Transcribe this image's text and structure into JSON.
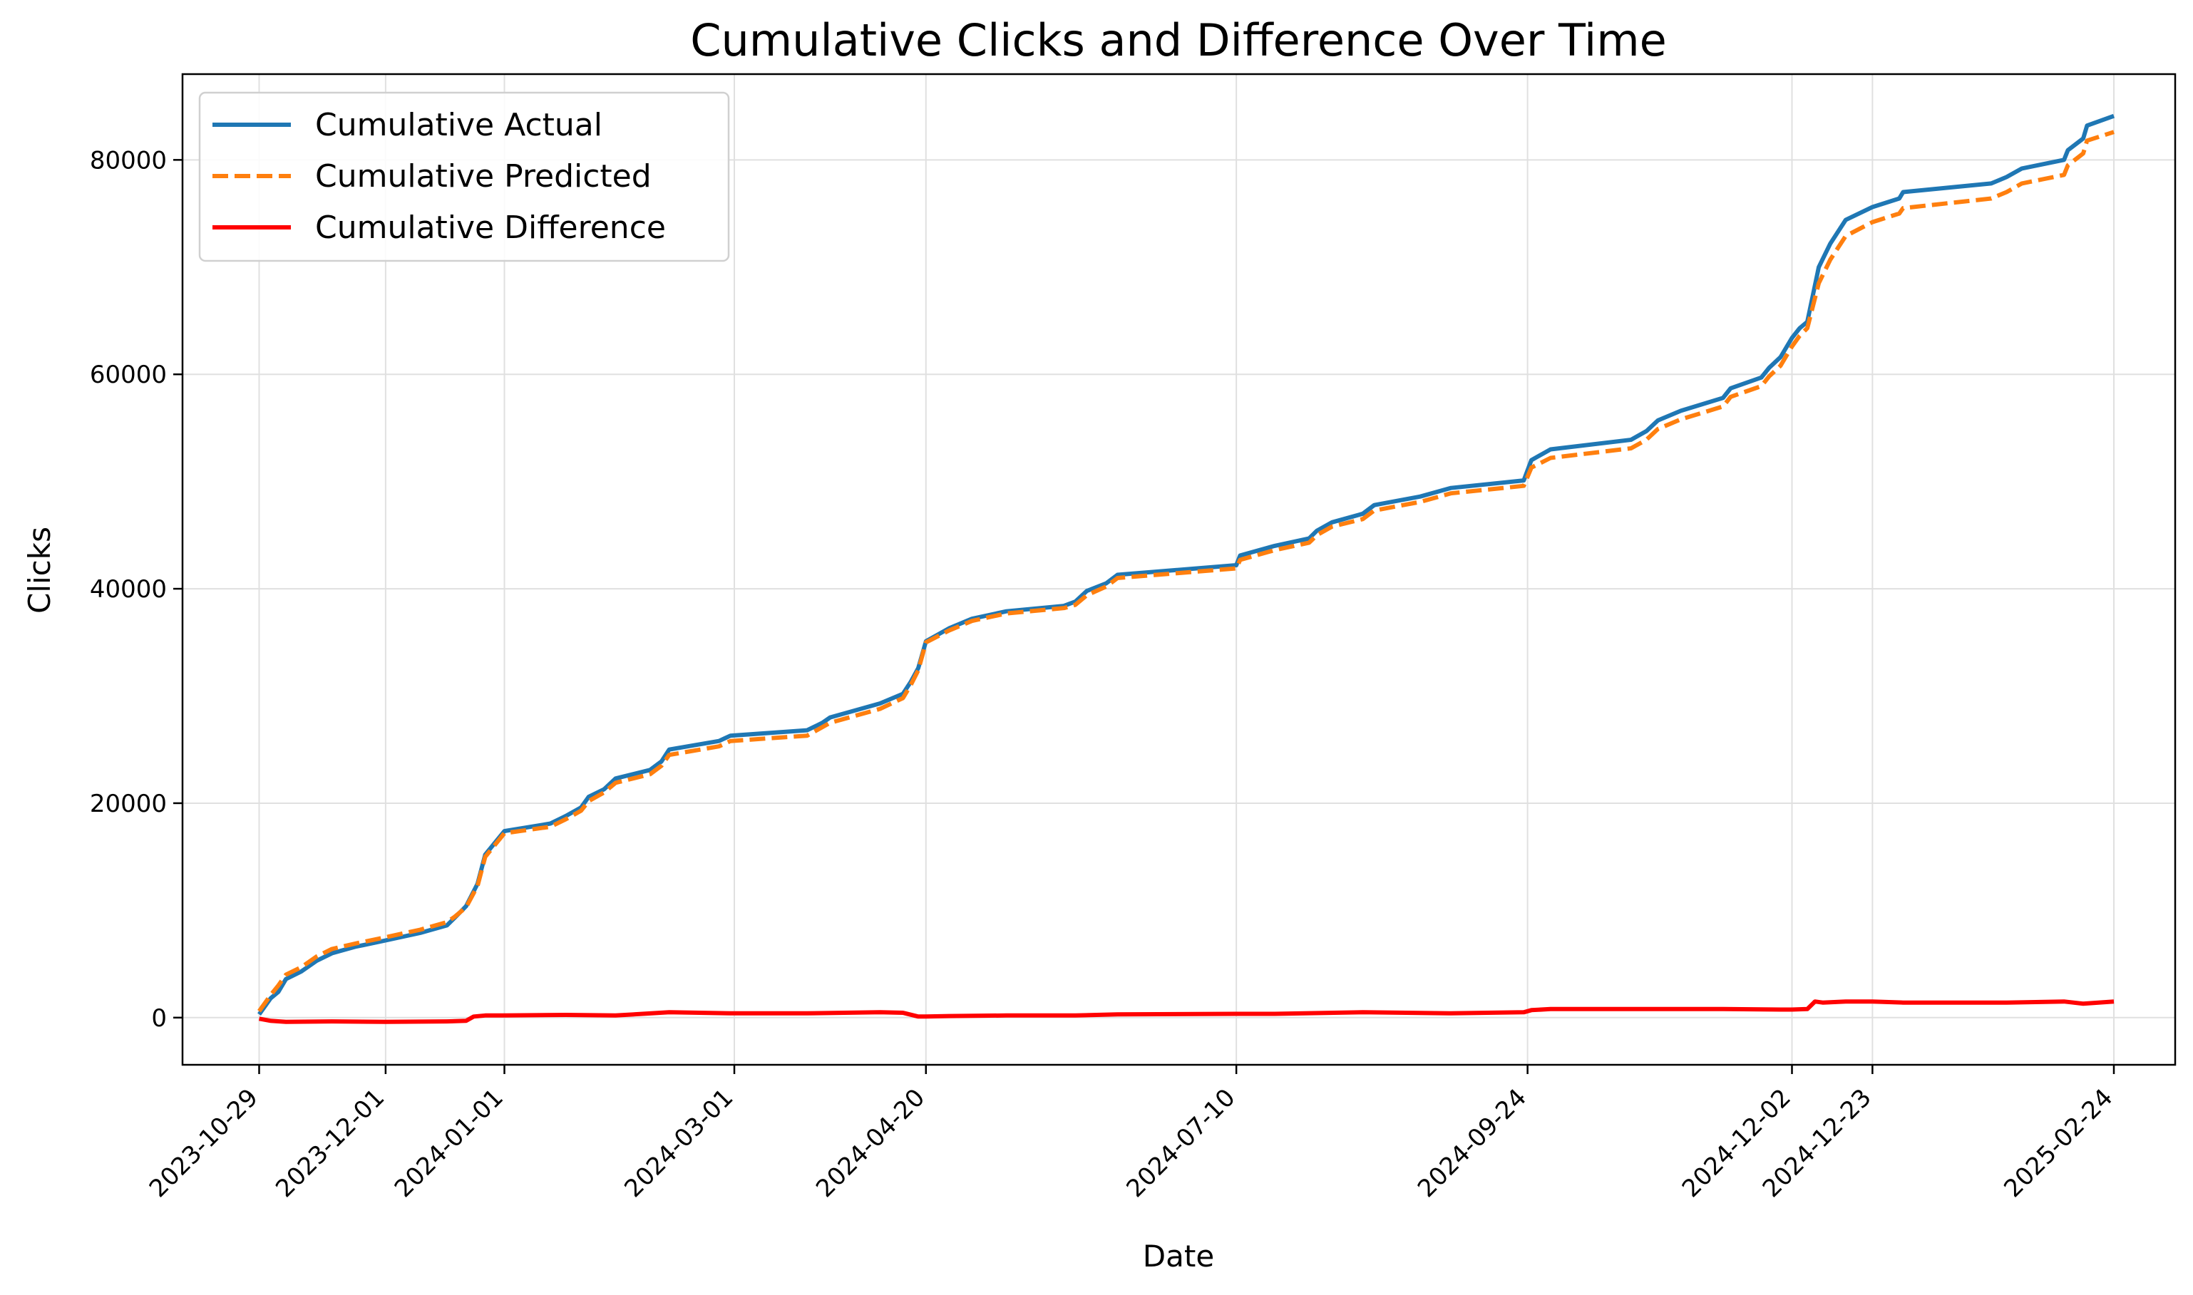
{
  "chart_data": {
    "type": "line",
    "title": "Cumulative Clicks and Difference Over Time",
    "xlabel": "Date",
    "ylabel": "Clicks",
    "xlim": [
      "2023-10-09",
      "2025-03-12"
    ],
    "ylim": [
      -4400,
      88000
    ],
    "grid": true,
    "legend_position": "top-left",
    "x_ticks": [
      "2023-10-29",
      "2023-12-01",
      "2024-01-01",
      "2024-03-01",
      "2024-04-20",
      "2024-07-10",
      "2024-09-24",
      "2024-12-02",
      "2024-12-23",
      "2025-02-24"
    ],
    "y_ticks": [
      0,
      20000,
      40000,
      60000,
      80000
    ],
    "series": [
      {
        "name": "Cumulative Actual",
        "color": "#1f77b4",
        "style": "solid",
        "points": [
          [
            "2023-10-29",
            300
          ],
          [
            "2023-11-01",
            1800
          ],
          [
            "2023-11-03",
            2400
          ],
          [
            "2023-11-05",
            3600
          ],
          [
            "2023-11-09",
            4300
          ],
          [
            "2023-11-13",
            5300
          ],
          [
            "2023-11-17",
            6000
          ],
          [
            "2023-11-23",
            6600
          ],
          [
            "2023-12-01",
            7200
          ],
          [
            "2023-12-10",
            7900
          ],
          [
            "2023-12-17",
            8600
          ],
          [
            "2023-12-19",
            9300
          ],
          [
            "2023-12-22",
            10400
          ],
          [
            "2023-12-25",
            12500
          ],
          [
            "2023-12-27",
            15200
          ],
          [
            "2024-01-01",
            17400
          ],
          [
            "2024-01-13",
            18100
          ],
          [
            "2024-01-17",
            18800
          ],
          [
            "2024-01-21",
            19600
          ],
          [
            "2024-01-23",
            20600
          ],
          [
            "2024-01-27",
            21300
          ],
          [
            "2024-01-30",
            22300
          ],
          [
            "2024-02-08",
            23100
          ],
          [
            "2024-02-11",
            23900
          ],
          [
            "2024-02-13",
            25000
          ],
          [
            "2024-02-26",
            25800
          ],
          [
            "2024-02-29",
            26300
          ],
          [
            "2024-03-20",
            26800
          ],
          [
            "2024-03-24",
            27500
          ],
          [
            "2024-03-26",
            28000
          ],
          [
            "2024-04-08",
            29300
          ],
          [
            "2024-04-14",
            30200
          ],
          [
            "2024-04-16",
            31300
          ],
          [
            "2024-04-18",
            32600
          ],
          [
            "2024-04-20",
            35100
          ],
          [
            "2024-04-26",
            36300
          ],
          [
            "2024-05-02",
            37200
          ],
          [
            "2024-05-11",
            37900
          ],
          [
            "2024-05-26",
            38400
          ],
          [
            "2024-05-29",
            38800
          ],
          [
            "2024-06-01",
            39800
          ],
          [
            "2024-06-06",
            40500
          ],
          [
            "2024-06-09",
            41300
          ],
          [
            "2024-07-10",
            42200
          ],
          [
            "2024-07-11",
            43100
          ],
          [
            "2024-07-20",
            44000
          ],
          [
            "2024-07-29",
            44700
          ],
          [
            "2024-07-31",
            45400
          ],
          [
            "2024-08-04",
            46200
          ],
          [
            "2024-08-12",
            47000
          ],
          [
            "2024-08-15",
            47800
          ],
          [
            "2024-08-27",
            48600
          ],
          [
            "2024-09-04",
            49400
          ],
          [
            "2024-09-23",
            50100
          ],
          [
            "2024-09-25",
            52000
          ],
          [
            "2024-09-30",
            53000
          ],
          [
            "2024-10-21",
            53900
          ],
          [
            "2024-10-25",
            54700
          ],
          [
            "2024-10-28",
            55700
          ],
          [
            "2024-11-03",
            56600
          ],
          [
            "2024-11-14",
            57800
          ],
          [
            "2024-11-16",
            58700
          ],
          [
            "2024-11-24",
            59700
          ],
          [
            "2024-11-26",
            60600
          ],
          [
            "2024-11-29",
            61600
          ],
          [
            "2024-12-02",
            63400
          ],
          [
            "2024-12-04",
            64300
          ],
          [
            "2024-12-06",
            64900
          ],
          [
            "2024-12-09",
            70000
          ],
          [
            "2024-12-12",
            72200
          ],
          [
            "2024-12-16",
            74400
          ],
          [
            "2024-12-23",
            75600
          ],
          [
            "2024-12-30",
            76400
          ],
          [
            "2024-12-31",
            77000
          ],
          [
            "2025-01-23",
            77800
          ],
          [
            "2025-01-27",
            78400
          ],
          [
            "2025-01-31",
            79200
          ],
          [
            "2025-02-11",
            80000
          ],
          [
            "2025-02-12",
            80900
          ],
          [
            "2025-02-16",
            82000
          ],
          [
            "2025-02-17",
            83200
          ],
          [
            "2025-02-24",
            84100
          ]
        ]
      },
      {
        "name": "Cumulative Predicted",
        "color": "#ff7f0e",
        "style": "dashed",
        "points": [
          [
            "2023-10-29",
            600
          ],
          [
            "2023-11-01",
            2100
          ],
          [
            "2023-11-03",
            3000
          ],
          [
            "2023-11-05",
            4000
          ],
          [
            "2023-11-09",
            4700
          ],
          [
            "2023-11-13",
            5700
          ],
          [
            "2023-11-17",
            6400
          ],
          [
            "2023-11-23",
            6900
          ],
          [
            "2023-12-01",
            7500
          ],
          [
            "2023-12-10",
            8200
          ],
          [
            "2023-12-17",
            8900
          ],
          [
            "2023-12-19",
            9400
          ],
          [
            "2023-12-22",
            10300
          ],
          [
            "2023-12-25",
            12300
          ],
          [
            "2023-12-27",
            15000
          ],
          [
            "2024-01-01",
            17200
          ],
          [
            "2024-01-13",
            17800
          ],
          [
            "2024-01-17",
            18500
          ],
          [
            "2024-01-21",
            19300
          ],
          [
            "2024-01-23",
            20200
          ],
          [
            "2024-01-27",
            21000
          ],
          [
            "2024-01-30",
            21900
          ],
          [
            "2024-02-08",
            22700
          ],
          [
            "2024-02-11",
            23500
          ],
          [
            "2024-02-13",
            24500
          ],
          [
            "2024-02-26",
            25300
          ],
          [
            "2024-02-29",
            25800
          ],
          [
            "2024-03-20",
            26300
          ],
          [
            "2024-03-24",
            27100
          ],
          [
            "2024-03-26",
            27500
          ],
          [
            "2024-04-08",
            28800
          ],
          [
            "2024-04-14",
            29800
          ],
          [
            "2024-04-16",
            31000
          ],
          [
            "2024-04-18",
            32400
          ],
          [
            "2024-04-20",
            35000
          ],
          [
            "2024-04-26",
            36100
          ],
          [
            "2024-05-02",
            37000
          ],
          [
            "2024-05-11",
            37700
          ],
          [
            "2024-05-26",
            38200
          ],
          [
            "2024-05-29",
            38500
          ],
          [
            "2024-06-01",
            39400
          ],
          [
            "2024-06-06",
            40200
          ],
          [
            "2024-06-09",
            41000
          ],
          [
            "2024-07-10",
            41900
          ],
          [
            "2024-07-11",
            42700
          ],
          [
            "2024-07-20",
            43600
          ],
          [
            "2024-07-29",
            44300
          ],
          [
            "2024-07-31",
            45000
          ],
          [
            "2024-08-04",
            45800
          ],
          [
            "2024-08-12",
            46500
          ],
          [
            "2024-08-15",
            47300
          ],
          [
            "2024-08-27",
            48100
          ],
          [
            "2024-09-04",
            48900
          ],
          [
            "2024-09-23",
            49600
          ],
          [
            "2024-09-25",
            51300
          ],
          [
            "2024-09-30",
            52200
          ],
          [
            "2024-10-21",
            53100
          ],
          [
            "2024-10-25",
            53900
          ],
          [
            "2024-10-28",
            54900
          ],
          [
            "2024-11-03",
            55800
          ],
          [
            "2024-11-14",
            57000
          ],
          [
            "2024-11-16",
            57900
          ],
          [
            "2024-11-24",
            58900
          ],
          [
            "2024-11-26",
            59800
          ],
          [
            "2024-11-29",
            60800
          ],
          [
            "2024-12-02",
            62600
          ],
          [
            "2024-12-04",
            63600
          ],
          [
            "2024-12-06",
            64300
          ],
          [
            "2024-12-09",
            68500
          ],
          [
            "2024-12-12",
            70700
          ],
          [
            "2024-12-16",
            72900
          ],
          [
            "2024-12-23",
            74200
          ],
          [
            "2024-12-30",
            75000
          ],
          [
            "2024-12-31",
            75500
          ],
          [
            "2025-01-23",
            76400
          ],
          [
            "2025-01-27",
            77000
          ],
          [
            "2025-01-31",
            77800
          ],
          [
            "2025-02-11",
            78600
          ],
          [
            "2025-02-12",
            79500
          ],
          [
            "2025-02-16",
            80600
          ],
          [
            "2025-02-17",
            81800
          ],
          [
            "2025-02-24",
            82600
          ]
        ]
      },
      {
        "name": "Cumulative Difference",
        "color": "#ff0000",
        "style": "solid",
        "points": [
          [
            "2023-10-29",
            -100
          ],
          [
            "2023-11-01",
            -300
          ],
          [
            "2023-11-05",
            -400
          ],
          [
            "2023-11-17",
            -350
          ],
          [
            "2023-12-01",
            -400
          ],
          [
            "2023-12-17",
            -350
          ],
          [
            "2023-12-22",
            -300
          ],
          [
            "2023-12-24",
            100
          ],
          [
            "2023-12-27",
            200
          ],
          [
            "2024-01-01",
            200
          ],
          [
            "2024-01-17",
            250
          ],
          [
            "2024-01-30",
            200
          ],
          [
            "2024-02-13",
            500
          ],
          [
            "2024-02-29",
            400
          ],
          [
            "2024-03-20",
            400
          ],
          [
            "2024-04-08",
            500
          ],
          [
            "2024-04-14",
            450
          ],
          [
            "2024-04-18",
            100
          ],
          [
            "2024-04-20",
            100
          ],
          [
            "2024-04-26",
            150
          ],
          [
            "2024-05-11",
            200
          ],
          [
            "2024-05-29",
            200
          ],
          [
            "2024-06-09",
            300
          ],
          [
            "2024-07-10",
            350
          ],
          [
            "2024-07-20",
            350
          ],
          [
            "2024-08-12",
            500
          ],
          [
            "2024-09-04",
            400
          ],
          [
            "2024-09-23",
            500
          ],
          [
            "2024-09-25",
            700
          ],
          [
            "2024-09-30",
            800
          ],
          [
            "2024-10-28",
            800
          ],
          [
            "2024-11-14",
            800
          ],
          [
            "2024-11-29",
            750
          ],
          [
            "2024-12-02",
            750
          ],
          [
            "2024-12-06",
            800
          ],
          [
            "2024-12-08",
            1500
          ],
          [
            "2024-12-10",
            1400
          ],
          [
            "2024-12-16",
            1500
          ],
          [
            "2024-12-23",
            1500
          ],
          [
            "2024-12-31",
            1400
          ],
          [
            "2025-01-27",
            1400
          ],
          [
            "2025-02-11",
            1500
          ],
          [
            "2025-02-16",
            1300
          ],
          [
            "2025-02-24",
            1500
          ]
        ]
      }
    ]
  }
}
